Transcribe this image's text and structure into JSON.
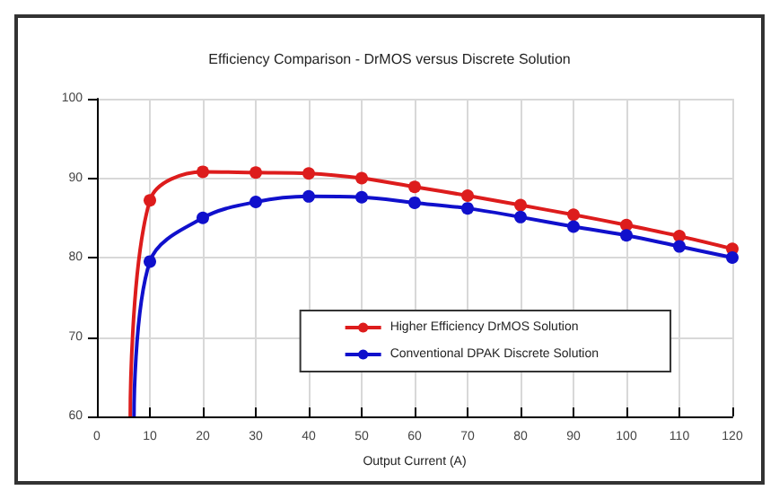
{
  "chart_data": {
    "type": "line",
    "title": "Efficiency Comparison - DrMOS versus Discrete Solution",
    "xlabel": "Output Current (A)",
    "series": [
      {
        "name": "Higher Efficiency DrMOS Solution",
        "color": "#dd1c1c",
        "x": [
          6.3,
          10,
          20,
          30,
          40,
          50,
          60,
          70,
          80,
          90,
          100,
          110,
          120
        ],
        "values": [
          60,
          87.2,
          90.8,
          90.7,
          90.6,
          90,
          88.9,
          87.8,
          86.6,
          85.4,
          84.1,
          82.7,
          81.1
        ]
      },
      {
        "name": "Conventional DPAK Discrete Solution",
        "color": "#1010cc",
        "x": [
          7,
          10,
          20,
          30,
          40,
          50,
          60,
          70,
          80,
          90,
          100,
          110,
          120
        ],
        "values": [
          60,
          79.5,
          85,
          87,
          87.7,
          87.6,
          86.9,
          86.2,
          85.1,
          83.9,
          82.8,
          81.4,
          80
        ]
      }
    ],
    "xlim": [
      0,
      120
    ],
    "xticks": [
      0,
      10,
      20,
      30,
      40,
      50,
      60,
      70,
      80,
      90,
      100,
      110,
      120
    ],
    "ylim": [
      60,
      100
    ],
    "yticks": [
      60,
      70,
      80,
      90,
      100
    ],
    "grid": true,
    "legend": "right",
    "marker": "circle",
    "line_style": "solid"
  }
}
